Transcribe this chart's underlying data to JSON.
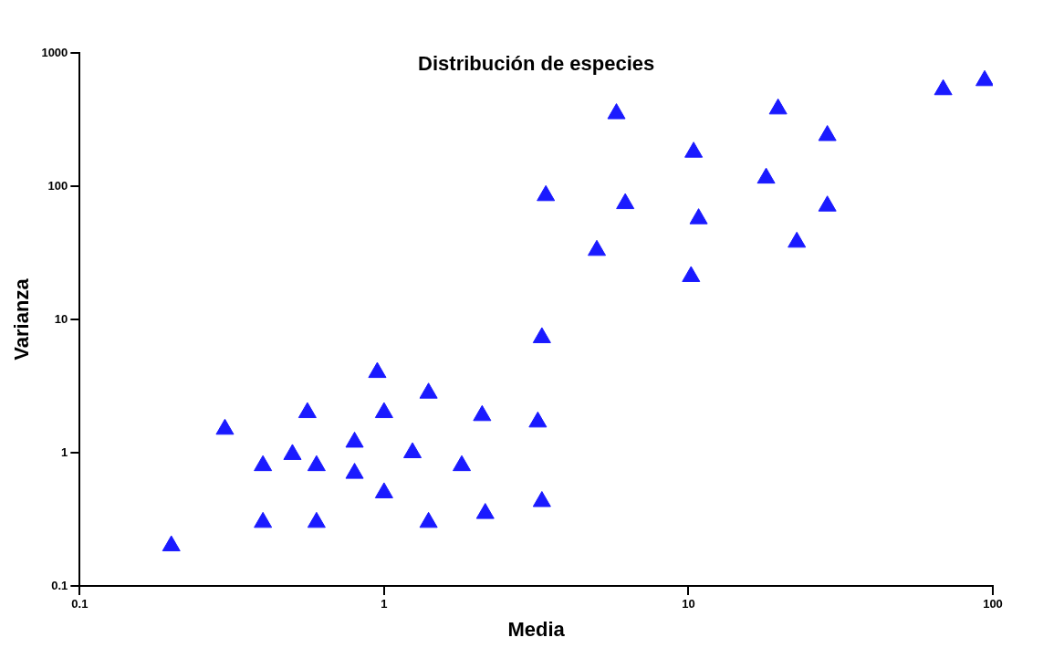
{
  "chart_data": {
    "type": "scatter",
    "title": "Distribución de especies",
    "xlabel": "Media",
    "ylabel": "Varianza",
    "log": "xy",
    "grid": false,
    "legend": false,
    "marker": "triangle",
    "xlim": [
      0.1,
      100
    ],
    "xticks": [
      0.1,
      1,
      10,
      100
    ],
    "ylim": [
      0.1,
      1000
    ],
    "yticks": [
      0.1,
      1,
      10,
      100,
      1000
    ],
    "series": [
      {
        "color": "#1a1aff",
        "x": [
          0.2,
          0.3,
          0.4,
          0.4,
          0.5,
          0.56,
          0.6,
          0.6,
          0.8,
          0.8,
          0.95,
          1,
          1,
          1.24,
          1.4,
          1.4,
          1.8,
          2.1,
          2.15,
          3.2,
          3.3,
          3.3,
          3.4,
          5,
          5.8,
          6.2,
          10.2,
          10.4,
          10.8,
          18,
          19.7,
          22.7,
          28.6,
          28.6,
          68.7,
          94
        ],
        "values": [
          0.2,
          1.5,
          0.8,
          0.3,
          0.97,
          2,
          0.8,
          0.3,
          1.2,
          0.7,
          4,
          2,
          0.5,
          1,
          2.8,
          0.3,
          0.8,
          1.9,
          0.35,
          1.7,
          0.43,
          7.3,
          85,
          33,
          350,
          74,
          21,
          180,
          57,
          115,
          380,
          38,
          240,
          71,
          530,
          620
        ]
      }
    ]
  }
}
